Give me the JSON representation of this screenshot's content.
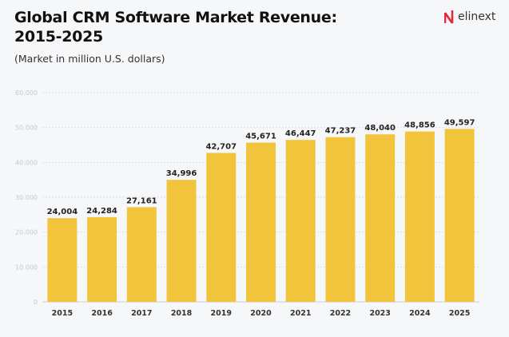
{
  "chart_data": {
    "type": "bar",
    "title": "Global CRM Software Market Revenue: 2015-2025",
    "subtitle": "(Market in million U.S. dollars)",
    "categories": [
      "2015",
      "2016",
      "2017",
      "2018",
      "2019",
      "2020",
      "2021",
      "2022",
      "2023",
      "2024",
      "2025"
    ],
    "values": [
      24004,
      24284,
      27161,
      34996,
      42707,
      45671,
      46447,
      47237,
      48040,
      48856,
      49597
    ],
    "data_labels": [
      "24,004",
      "24,284",
      "27,161",
      "34,996",
      "42,707",
      "45,671",
      "46,447",
      "47,237",
      "48,040",
      "48,856",
      "49,597"
    ],
    "yticks": [
      "0",
      "10.000",
      "20.000",
      "30.000",
      "40.000",
      "50.000",
      "60.000"
    ],
    "ylim": [
      0,
      60000
    ],
    "grid": true,
    "bar_color": "#f2c43c",
    "xlabel": "",
    "ylabel": ""
  },
  "logo": {
    "text": "elinext",
    "color": "#e6283c"
  }
}
